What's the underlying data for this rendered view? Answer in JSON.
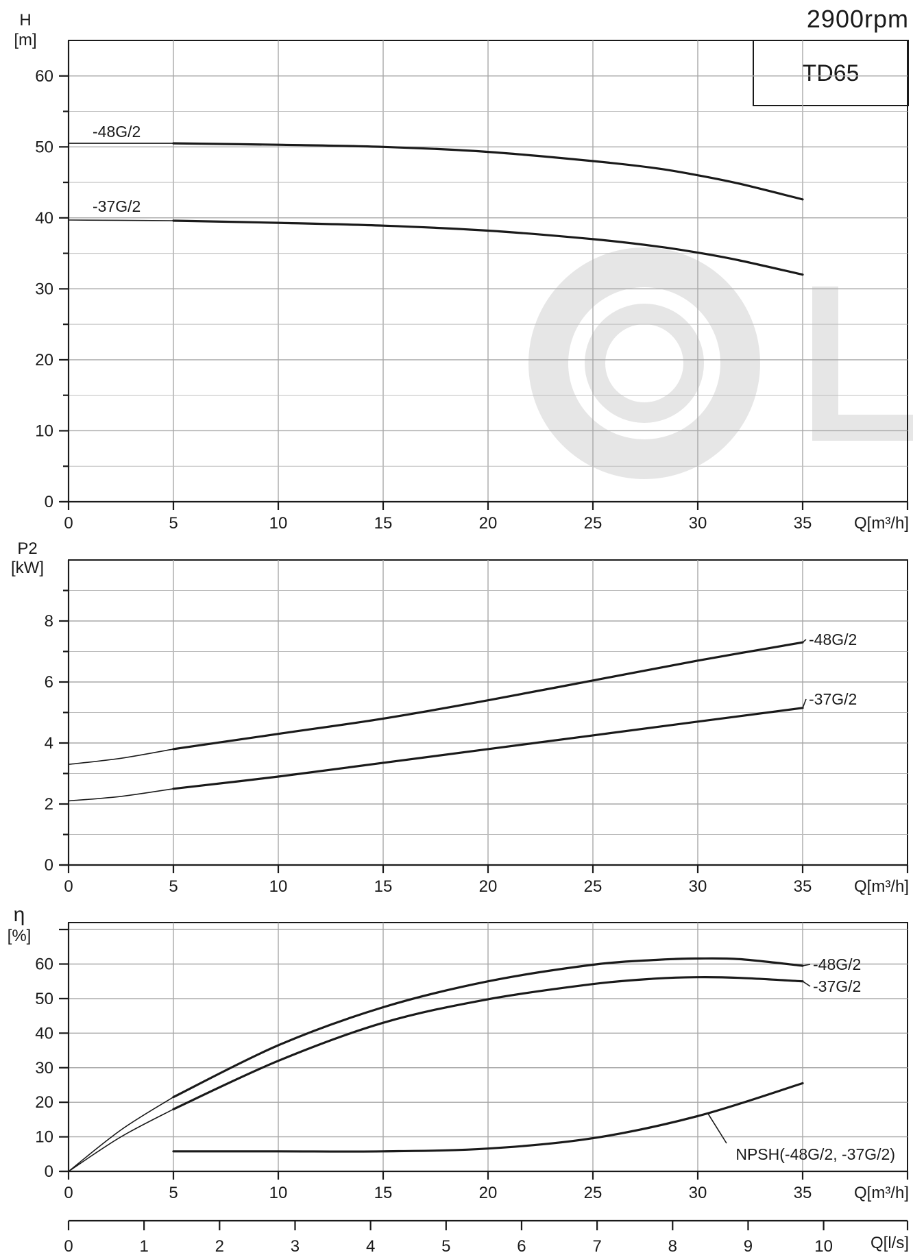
{
  "header": {
    "speed": "2900rpm",
    "model": "TD65"
  },
  "colors": {
    "curve": "#1a1a1a",
    "grid": "#a8a8a8",
    "watermark": "#e6e6e6"
  },
  "chart_data": [
    {
      "id": "head",
      "type": "line",
      "ylabel_symbol": "H",
      "ylabel_unit": "[m]",
      "xlabel": "Q[m³/h]",
      "xlim": [
        0,
        40
      ],
      "ylim": [
        0,
        65
      ],
      "x_ticks": [
        0,
        5,
        10,
        15,
        20,
        25,
        30,
        35
      ],
      "y_ticks": [
        0,
        10,
        20,
        30,
        40,
        50,
        60
      ],
      "grid": true,
      "series": [
        {
          "name": "-48G/2",
          "x": [
            0,
            5,
            10,
            15,
            20,
            25,
            28,
            30,
            32,
            35
          ],
          "y": [
            50.5,
            50.5,
            50.3,
            50.0,
            49.3,
            48.0,
            47.0,
            46.0,
            44.8,
            42.6
          ]
        },
        {
          "name": "-37G/2",
          "x": [
            0,
            5,
            10,
            15,
            20,
            25,
            28,
            30,
            32,
            35
          ],
          "y": [
            39.7,
            39.6,
            39.3,
            38.9,
            38.2,
            37.0,
            36.0,
            35.1,
            34.0,
            32.0
          ]
        }
      ]
    },
    {
      "id": "power",
      "type": "line",
      "ylabel_symbol": "P2",
      "ylabel_unit": "[kW]",
      "xlabel": "Q[m³/h]",
      "xlim": [
        0,
        40
      ],
      "ylim": [
        0,
        10
      ],
      "x_ticks": [
        0,
        5,
        10,
        15,
        20,
        25,
        30,
        35
      ],
      "y_ticks": [
        0,
        2,
        4,
        6,
        8
      ],
      "grid": true,
      "series": [
        {
          "name": "-48G/2",
          "x": [
            0,
            2.5,
            5,
            10,
            15,
            20,
            25,
            30,
            35
          ],
          "y": [
            3.3,
            3.5,
            3.8,
            4.3,
            4.8,
            5.4,
            6.05,
            6.7,
            7.3
          ]
        },
        {
          "name": "-37G/2",
          "x": [
            0,
            2.5,
            5,
            10,
            15,
            20,
            25,
            30,
            35
          ],
          "y": [
            2.1,
            2.25,
            2.5,
            2.9,
            3.35,
            3.8,
            4.25,
            4.7,
            5.15
          ]
        }
      ]
    },
    {
      "id": "efficiency",
      "type": "line",
      "ylabel_symbol": "η",
      "ylabel_unit": "[%]",
      "xlabel": "Q[m³/h]",
      "xlim": [
        0,
        40
      ],
      "ylim": [
        0,
        72
      ],
      "x_ticks": [
        0,
        5,
        10,
        15,
        20,
        25,
        30,
        35
      ],
      "y_ticks": [
        0,
        10,
        20,
        30,
        40,
        50,
        60,
        70
      ],
      "y_tick_labels": [
        "0",
        "10",
        "20",
        "30",
        "40",
        "50",
        "60",
        ""
      ],
      "grid": true,
      "series": [
        {
          "name": "-48G/2",
          "x": [
            0,
            2.5,
            5,
            10,
            15,
            20,
            25,
            28,
            30,
            32,
            35
          ],
          "y": [
            0,
            12,
            21.5,
            36.5,
            47.5,
            55.0,
            59.8,
            61.2,
            61.6,
            61.4,
            59.5
          ]
        },
        {
          "name": "-37G/2",
          "x": [
            0,
            2.5,
            5,
            10,
            15,
            20,
            25,
            28,
            30,
            32,
            35
          ],
          "y": [
            0,
            10,
            18,
            32,
            43,
            49.8,
            54.2,
            55.8,
            56.2,
            56.0,
            55.0
          ]
        },
        {
          "name": "NPSH(-48G/2, -37G/2)",
          "x": [
            5,
            10,
            15,
            20,
            25,
            30,
            35
          ],
          "y": [
            5.8,
            5.8,
            5.8,
            6.6,
            9.6,
            16.0,
            25.5
          ]
        }
      ],
      "secondary_x_axis": {
        "label": "Q[l/s]",
        "lim": [
          0,
          11
        ],
        "ticks": [
          0,
          1,
          2,
          3,
          4,
          5,
          6,
          7,
          8,
          9,
          10
        ]
      }
    }
  ]
}
